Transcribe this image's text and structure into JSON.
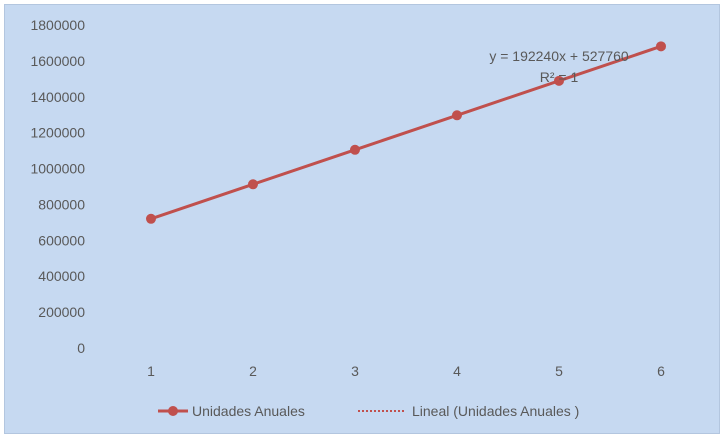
{
  "chart_data": {
    "type": "line",
    "x": [
      1,
      2,
      3,
      4,
      5,
      6
    ],
    "series": [
      {
        "name": "Unidades Anuales",
        "values": [
          720000,
          912240,
          1104480,
          1296720,
          1488960,
          1681200
        ],
        "color": "#c0504d"
      }
    ],
    "trendline": {
      "name": "Lineal (Unidades Anuales )",
      "type": "linear",
      "slope": 192240,
      "intercept": 527760,
      "equation": "y = 192240x + 527760",
      "r_squared": "R² = 1",
      "color": "#c0504d"
    },
    "yticks": [
      "0",
      "200000",
      "400000",
      "600000",
      "800000",
      "1000000",
      "1200000",
      "1400000",
      "1600000",
      "1800000"
    ],
    "xticks": [
      "1",
      "2",
      "3",
      "4",
      "5",
      "6"
    ],
    "ylim": [
      0,
      1800000
    ],
    "xlim": [
      0.5,
      6.5
    ],
    "grid": false,
    "legend_position": "bottom",
    "background_color": "#c6d9f1"
  }
}
